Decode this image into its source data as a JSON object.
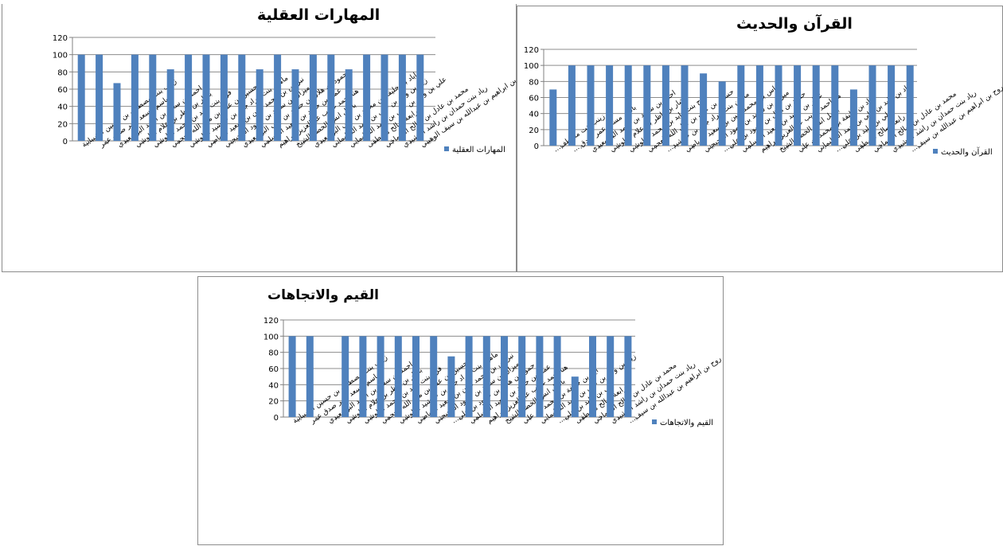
{
  "colors": {
    "bar": "#4f81bd",
    "grid": "#8c8c8c",
    "axis": "#808080"
  },
  "chart_data": [
    {
      "type": "bar",
      "title": "المهارات العقلية",
      "legend": [
        "المهارات العقلية"
      ],
      "legend_position": "right",
      "ylim": [
        0,
        120
      ],
      "yticks": [
        0,
        20,
        40,
        60,
        80,
        100,
        120
      ],
      "grid": true,
      "categories": [
        "زينب بنت مصطفى بن حسين الشيبانية",
        "باسم مسعد عمر صدق عمر",
        "احمد بن سعيد بن احمد البوسعيدي",
        "بشار بن ناظر بن علام البلوشي",
        "فرح بنت زايد بن محمد البلوشي",
        "حسين بن علي بن مال الله العجمي",
        "ماهين بنت مراد جان بن خرشيد البلوشي",
        "نبراس بن محمد امين بن سعيد الرياضي",
        "ميزان بن سعيد بن حمود المحيجني",
        "حمود بن هلال بن حمود بن علي البوسعيدي",
        "عمار بن حميد بن سعيد المسلمي",
        "هنا احمد غريب عبدالعزيز ابراهيم",
        "باسل انس الخضر الشيخ",
        "اياد بن خليفة بن محمد بن علي البوسعيدي",
        "زياد بن وليد بن علي بن حمد السليماني",
        "علي بن وليد بن علي بن حمد السليماني",
        "رابعة صالح مصطفى",
        "محمد بن عادل بن صالح الشماخي",
        "رياد بنت حمدان بن راشد الرشيدي",
        "روح بن ابراهيم بن عبدالله بن سيف الوهيبي"
      ],
      "series": [
        {
          "name": "المهارات العقلية",
          "values": [
            100,
            100,
            67,
            100,
            100,
            83,
            100,
            100,
            100,
            100,
            83,
            100,
            83,
            100,
            100,
            83,
            100,
            100,
            100,
            100
          ]
        }
      ]
    },
    {
      "type": "bar",
      "title": "القرآن والحديث",
      "legend": [
        "القرآن والحديث"
      ],
      "legend_position": "right",
      "ylim": [
        0,
        120
      ],
      "yticks": [
        0,
        20,
        40,
        60,
        80,
        100,
        120
      ],
      "grid": true,
      "categories": [
        "زينب بنت مصطف...",
        "باسم مسعد عمر صدق ...",
        "احمد بن سعيد بن احمد البوسعيدي",
        "بشار بن ناظر بن علام البلوشي",
        "فرح بنت زايد بن محمد البلوشي",
        "حسين بن علي بن مال الله العجمي",
        "ماهين بنت مراد جان بن خرشيد...",
        "نبراس بن محمد امين بن سعيد الرياضي",
        "ميزان بن سعيد بن حمود المحيجني",
        "حمود بن هلال بن حمود بن علي...",
        "عمار بن حميد بن سعيد المسلمي",
        "هنا احمد غريب عبدالعزيز ابراهيم",
        "باسل انس الخضر الشيخ",
        "اياد بن خليفة بن محمد بن علي",
        "زياد بن وليد بن علي بن حمد السليماني",
        "علي بن وليد بن علي...",
        "رابعة صالح مصطفى",
        "محمد بن عادل بن صالح الشماخي",
        "رياد بنت حمدان بن راشد الرشيدي",
        "روح بن ابراهيم بن عبدالله بن سيف..."
      ],
      "series": [
        {
          "name": "القرآن والحديث",
          "values": [
            70,
            100,
            100,
            100,
            100,
            100,
            100,
            100,
            90,
            80,
            100,
            100,
            100,
            100,
            100,
            100,
            70,
            100,
            100,
            100
          ]
        }
      ]
    },
    {
      "type": "bar",
      "title": "القيم والاتجاهات",
      "legend": [
        "القيم والاتجاهات"
      ],
      "legend_position": "right",
      "ylim": [
        0,
        120
      ],
      "yticks": [
        0,
        20,
        40,
        60,
        80,
        100,
        120
      ],
      "grid": true,
      "categories": [
        "زينب بنت مصطفى بن حسين الشيبانية",
        "باسم مسعد عمر صدق عمر",
        "احمد بن سعيد بن احمد البوسعيدي",
        "بشار بن ناظر بن علام البلوشي",
        "فرح بنت زايد بن محمد البلوشي",
        "حسين بن علي بن مال الله العجمي",
        "ماهين بنت مراد جان بن خرشيد البلوشي",
        "نبراس بن محمد امين بن سعيد الرياضي",
        "ميزان بن سعيد بن حمود المحيجني",
        "حمود بن هلال بن حمود بن علي...",
        "عمار بن حميد بن سعيد المسلمي",
        "هنا احمد غريب عبدالعزيز ابراهيم",
        "باسل انس الخضر الشيخ",
        "اياد بن خليفة بن محمد بن علي",
        "زياد بن وليد بن علي بن حمد السليماني",
        "علي بن وليد بن علي...",
        "رابعة صالح مصطفى",
        "محمد بن عادل بن صالح الشماخي",
        "رياد بنت حمدان بن راشد الرشيدي",
        "روح بن ابراهيم بن عبدالله بن سيف..."
      ],
      "series": [
        {
          "name": "القيم والاتجاهات",
          "values": [
            100,
            100,
            0,
            100,
            100,
            100,
            100,
            100,
            100,
            75,
            100,
            100,
            100,
            100,
            100,
            100,
            50,
            100,
            100,
            100
          ]
        }
      ]
    }
  ]
}
